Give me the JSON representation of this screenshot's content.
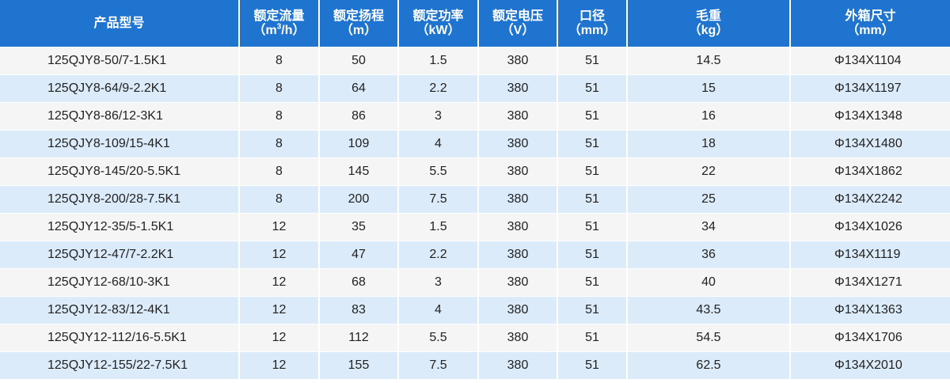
{
  "table": {
    "headers": [
      {
        "label": "产品型号",
        "unit": ""
      },
      {
        "label": "额定流量",
        "unit": "（m",
        "unit_sup": "3",
        "unit_tail": "/h）"
      },
      {
        "label": "额定扬程",
        "unit": "（m）"
      },
      {
        "label": "额定功率",
        "unit": "（kW）"
      },
      {
        "label": "额定电压",
        "unit": "（V）"
      },
      {
        "label": "口径",
        "unit": "（mm）"
      },
      {
        "label": "毛重",
        "unit": "（kg）"
      },
      {
        "label": "外箱尺寸",
        "unit": "（mm）"
      }
    ],
    "rows": [
      [
        "125QJY8-50/7-1.5K1",
        "8",
        "50",
        "1.5",
        "380",
        "51",
        "14.5",
        "Φ134X1104"
      ],
      [
        "125QJY8-64/9-2.2K1",
        "8",
        "64",
        "2.2",
        "380",
        "51",
        "15",
        "Φ134X1197"
      ],
      [
        "125QJY8-86/12-3K1",
        "8",
        "86",
        "3",
        "380",
        "51",
        "16",
        "Φ134X1348"
      ],
      [
        "125QJY8-109/15-4K1",
        "8",
        "109",
        "4",
        "380",
        "51",
        "18",
        "Φ134X1480"
      ],
      [
        "125QJY8-145/20-5.5K1",
        "8",
        "145",
        "5.5",
        "380",
        "51",
        "22",
        "Φ134X1862"
      ],
      [
        "125QJY8-200/28-7.5K1",
        "8",
        "200",
        "7.5",
        "380",
        "51",
        "25",
        "Φ134X2242"
      ],
      [
        "125QJY12-35/5-1.5K1",
        "12",
        "35",
        "1.5",
        "380",
        "51",
        "34",
        "Φ134X1026"
      ],
      [
        "125QJY12-47/7-2.2K1",
        "12",
        "47",
        "2.2",
        "380",
        "51",
        "36",
        "Φ134X1119"
      ],
      [
        "125QJY12-68/10-3K1",
        "12",
        "68",
        "3",
        "380",
        "51",
        "40",
        "Φ134X1271"
      ],
      [
        "125QJY12-83/12-4K1",
        "12",
        "83",
        "4",
        "380",
        "51",
        "43.5",
        "Φ134X1363"
      ],
      [
        "125QJY12-112/16-5.5K1",
        "12",
        "112",
        "5.5",
        "380",
        "51",
        "54.5",
        "Φ134X1706"
      ],
      [
        "125QJY12-155/22-7.5K1",
        "12",
        "155",
        "7.5",
        "380",
        "51",
        "62.5",
        "Φ134X2010"
      ]
    ],
    "colors": {
      "header_bg": "#1f74cf",
      "header_text": "#ffffff",
      "row_odd_bg": "#f5f5f6",
      "row_even_bg": "#dcebf9",
      "cell_text": "#222222"
    }
  }
}
